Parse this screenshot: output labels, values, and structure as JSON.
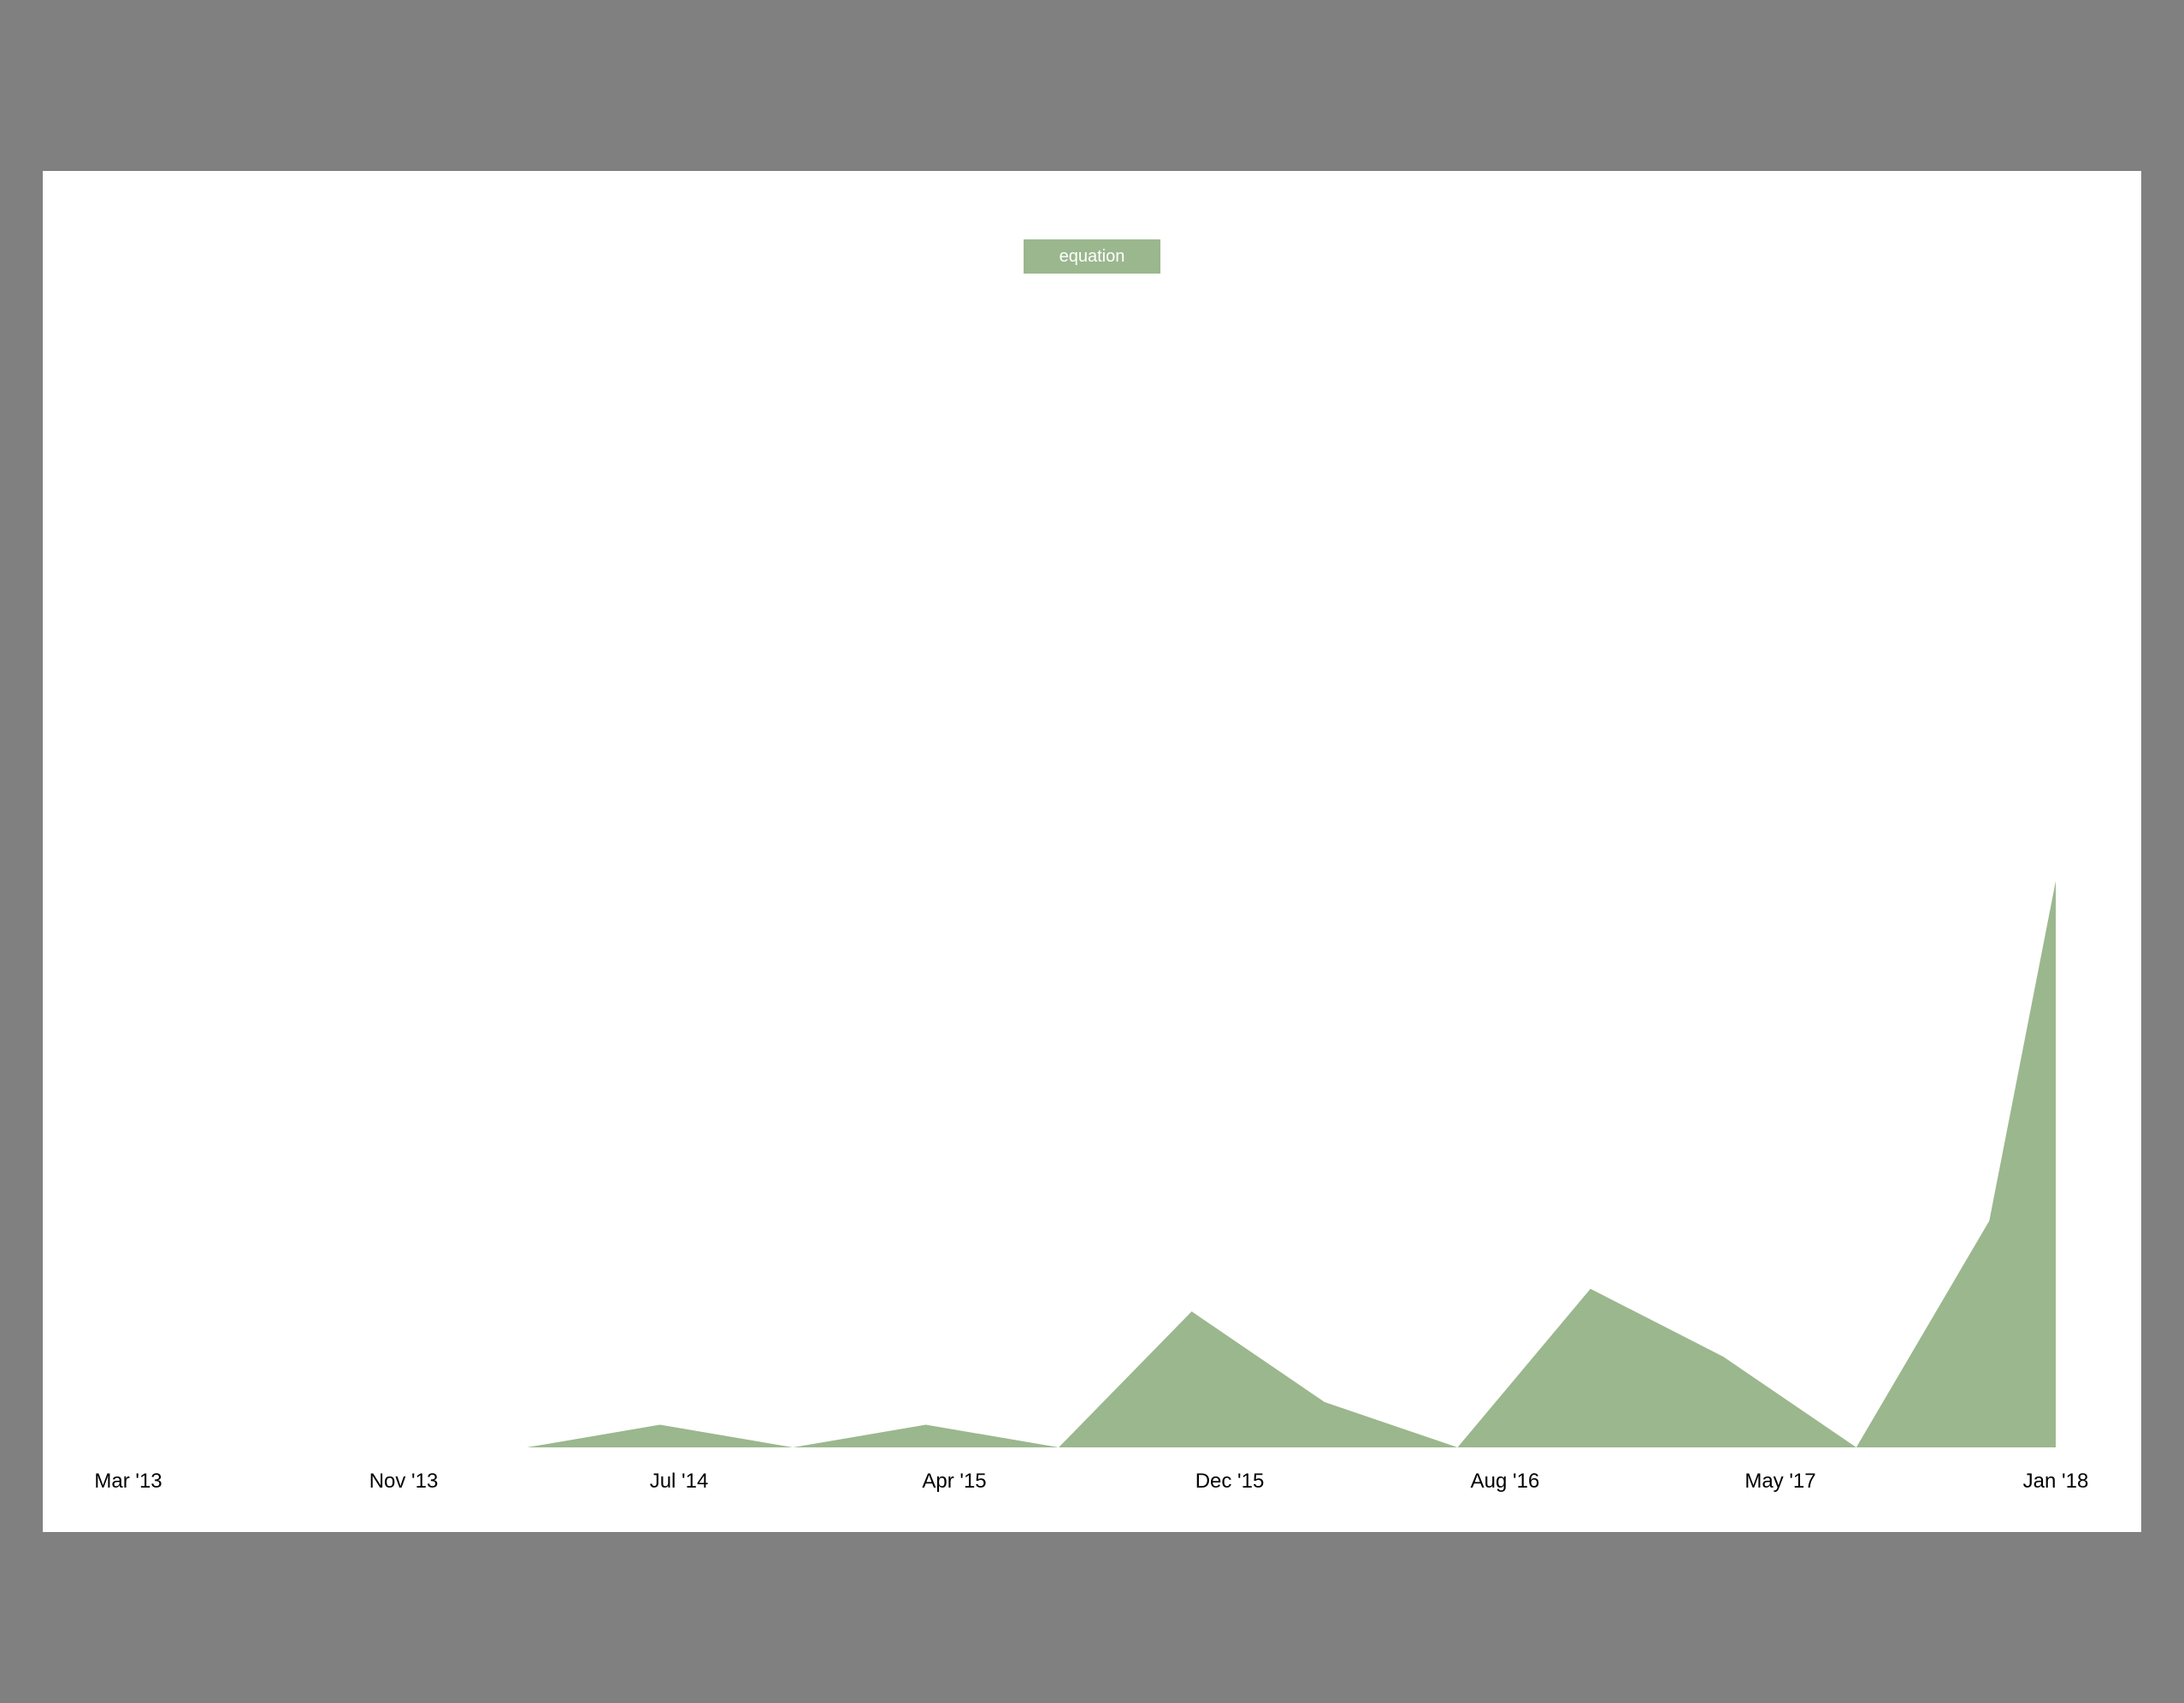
{
  "colors": {
    "backdrop": "#808080",
    "card": "#ffffff",
    "series": "#9bb78e",
    "text": "#000000",
    "legend_text": "#ffffff"
  },
  "legend": {
    "label": "equation"
  },
  "chart_data": {
    "type": "area",
    "title": "",
    "xlabel": "",
    "ylabel": "",
    "x_tick_labels": [
      "Mar '13",
      "Nov '13",
      "Jul '14",
      "Apr '15",
      "Dec '15",
      "Aug '16",
      "May '17",
      "Jan '18"
    ],
    "x": [
      "2013-03",
      "2013-07",
      "2013-11",
      "2014-03",
      "2014-07",
      "2014-11",
      "2015-03",
      "2015-07",
      "2015-11",
      "2016-03",
      "2016-07",
      "2016-11",
      "2017-03",
      "2017-07",
      "2017-11",
      "2018-01"
    ],
    "series": [
      {
        "name": "equation",
        "values": [
          0,
          0,
          0,
          0,
          1,
          0,
          1,
          0,
          6,
          2,
          0,
          7,
          4,
          0,
          10,
          25
        ]
      }
    ],
    "ylim": [
      0,
      60
    ],
    "grid": false,
    "legend_position": "top-center"
  }
}
